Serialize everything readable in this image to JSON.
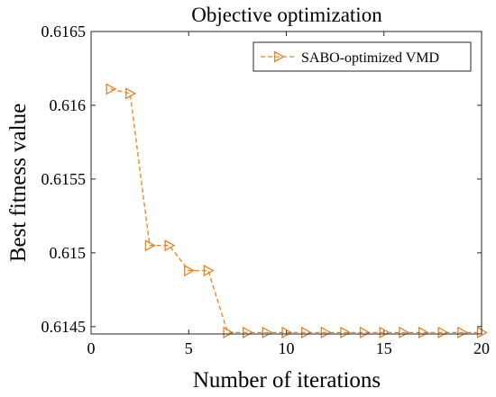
{
  "chart_data": {
    "type": "line",
    "title": "Objective optimization",
    "xlabel": "Number of iterations",
    "ylabel": "Best fitness value",
    "xlim": [
      0,
      20
    ],
    "ylim": [
      0.61445,
      0.6165
    ],
    "xticks": [
      0,
      5,
      10,
      15,
      20
    ],
    "xtick_labels": [
      "0",
      "5",
      "10",
      "15",
      "20"
    ],
    "yticks": [
      0.6145,
      0.615,
      0.6155,
      0.616,
      0.6165
    ],
    "ytick_labels": [
      "0.6145",
      "0.615",
      "0.6155",
      "0.616",
      "0.6165"
    ],
    "grid": false,
    "legend_position": "top-right",
    "series": [
      {
        "name": "SABO-optimized VMD",
        "color": "#E8821E",
        "line_style": "dashed",
        "marker": "triangle-right",
        "x": [
          1,
          2,
          3,
          4,
          5,
          6,
          7,
          8,
          9,
          10,
          11,
          12,
          13,
          14,
          15,
          16,
          17,
          18,
          19,
          20
        ],
        "y": [
          0.61611,
          0.61608,
          0.61505,
          0.61505,
          0.61488,
          0.61488,
          0.61446,
          0.61446,
          0.61446,
          0.61446,
          0.61446,
          0.61446,
          0.61446,
          0.61446,
          0.61446,
          0.61446,
          0.61446,
          0.61446,
          0.61446,
          0.61446
        ]
      }
    ]
  }
}
